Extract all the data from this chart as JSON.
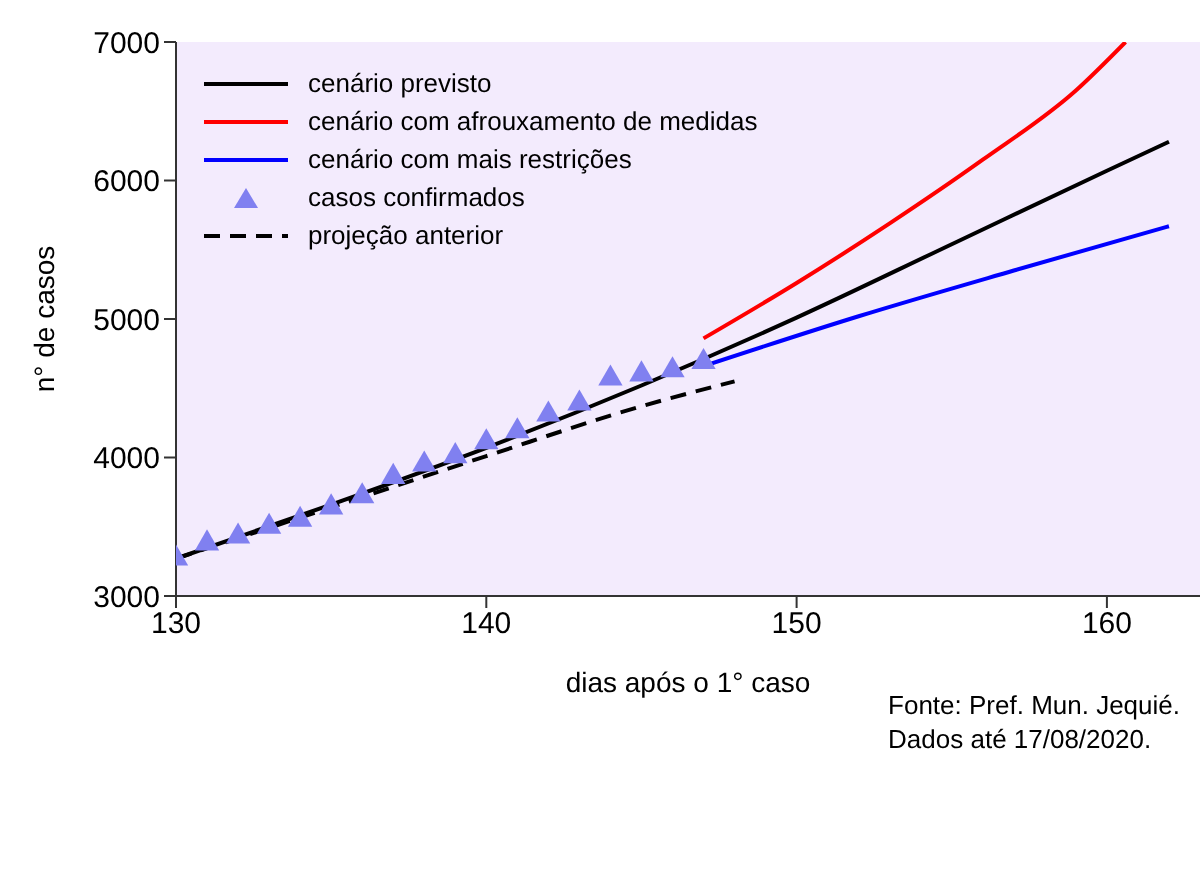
{
  "chart_data": {
    "type": "line",
    "xlabel": "dias após o 1° caso",
    "ylabel": "n° de casos",
    "xlim": [
      130,
      163
    ],
    "xticks": [
      130,
      140,
      150,
      160
    ],
    "ylim": [
      3000,
      7000
    ],
    "yticks": [
      3000,
      4000,
      5000,
      6000,
      7000
    ],
    "grid": false,
    "legend": "top left",
    "annotations": [
      "Fonte: Pref. Mun. Jequié.",
      "Dados até 17/08/2020."
    ],
    "series": [
      {
        "name": "cenário previsto",
        "color": "#000000",
        "line_style": "solid",
        "marker": "none",
        "x": [
          130,
          135,
          140,
          145,
          150,
          155,
          160,
          162
        ],
        "values": [
          3270,
          3660,
          4070,
          4520,
          5010,
          5540,
          6070,
          6280
        ]
      },
      {
        "name": "cenário com afrouxamento de medidas",
        "color": "#ff0000",
        "line_style": "solid",
        "marker": "none",
        "x": [
          147,
          150,
          153,
          156,
          159,
          160.6
        ],
        "values": [
          4860,
          5260,
          5690,
          6150,
          6650,
          7000
        ]
      },
      {
        "name": "cenário com mais restrições",
        "color": "#0000ff",
        "line_style": "solid",
        "marker": "none",
        "x": [
          147,
          152,
          157,
          162
        ],
        "values": [
          4660,
          5020,
          5350,
          5670
        ]
      },
      {
        "name": "casos confirmados",
        "type": "scatter",
        "color": "#8080f0",
        "marker": "triangle",
        "x": [
          130,
          131,
          132,
          133,
          134,
          135,
          136,
          137,
          138,
          139,
          140,
          141,
          142,
          143,
          144,
          145,
          146,
          147
        ],
        "values": [
          3270,
          3380,
          3430,
          3500,
          3550,
          3640,
          3720,
          3860,
          3950,
          4010,
          4110,
          4190,
          4310,
          4390,
          4570,
          4600,
          4630,
          4690
        ]
      },
      {
        "name": "projeção anterior",
        "color": "#000000",
        "line_style": "dashed",
        "marker": "none",
        "x": [
          130,
          135,
          140,
          145,
          148
        ],
        "values": [
          3270,
          3640,
          4010,
          4370,
          4550
        ]
      }
    ]
  }
}
